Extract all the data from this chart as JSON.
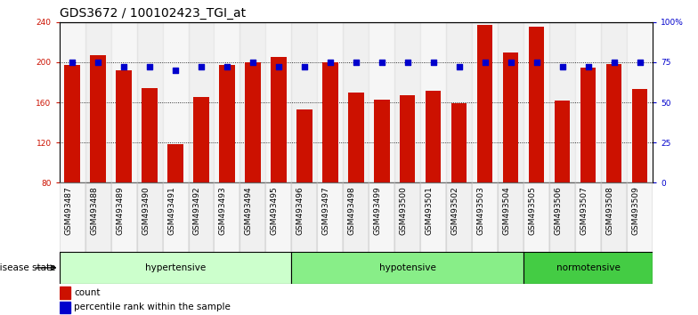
{
  "title": "GDS3672 / 100102423_TGI_at",
  "samples": [
    "GSM493487",
    "GSM493488",
    "GSM493489",
    "GSM493490",
    "GSM493491",
    "GSM493492",
    "GSM493493",
    "GSM493494",
    "GSM493495",
    "GSM493496",
    "GSM493497",
    "GSM493498",
    "GSM493499",
    "GSM493500",
    "GSM493501",
    "GSM493502",
    "GSM493503",
    "GSM493504",
    "GSM493505",
    "GSM493506",
    "GSM493507",
    "GSM493508",
    "GSM493509"
  ],
  "counts": [
    197,
    207,
    192,
    174,
    118,
    165,
    197,
    200,
    205,
    153,
    200,
    170,
    163,
    167,
    172,
    159,
    237,
    210,
    235,
    162,
    195,
    198,
    173
  ],
  "percentile_ranks": [
    75,
    75,
    72,
    72,
    70,
    72,
    72,
    75,
    72,
    72,
    75,
    75,
    75,
    75,
    75,
    72,
    75,
    75,
    75,
    72,
    72,
    75,
    75
  ],
  "groups": [
    {
      "name": "hypertensive",
      "start": 0,
      "end": 9
    },
    {
      "name": "hypotensive",
      "start": 9,
      "end": 18
    },
    {
      "name": "normotensive",
      "start": 18,
      "end": 23
    }
  ],
  "group_colors": {
    "hypertensive": "#ccffcc",
    "hypotensive": "#88ee88",
    "normotensive": "#44cc44"
  },
  "bar_color": "#cc1100",
  "dot_color": "#0000cc",
  "ylim_left": [
    80,
    240
  ],
  "ylim_right": [
    0,
    100
  ],
  "yticks_left": [
    80,
    120,
    160,
    200,
    240
  ],
  "yticks_right": [
    0,
    25,
    50,
    75,
    100
  ],
  "yticklabels_right": [
    "0",
    "25",
    "50",
    "75",
    "100%"
  ],
  "grid_lines": [
    120,
    160,
    200
  ],
  "background_color": "#ffffff",
  "title_fontsize": 10,
  "tick_fontsize": 6.5,
  "label_fontsize": 7.5
}
